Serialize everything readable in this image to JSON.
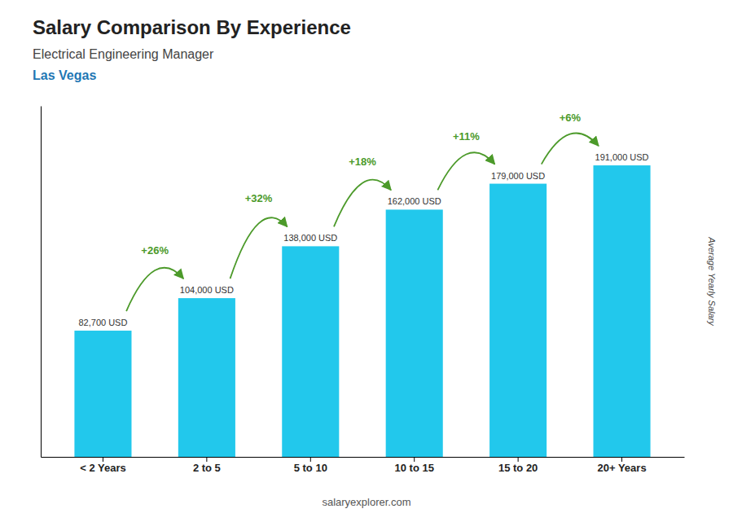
{
  "chart_data": {
    "type": "bar",
    "title": "Salary Comparison By Experience",
    "subtitle": "Electrical Engineering Manager",
    "city": "Las Vegas",
    "ylabel": "Average Yearly Salary",
    "categories": [
      "< 2 Years",
      "2 to 5",
      "5 to 10",
      "10 to 15",
      "15 to 20",
      "20+ Years"
    ],
    "values": [
      82700,
      104000,
      138000,
      162000,
      179000,
      191000
    ],
    "value_labels": [
      "82,700 USD",
      "104,000 USD",
      "138,000 USD",
      "162,000 USD",
      "179,000 USD",
      "191,000 USD"
    ],
    "data_labels": true,
    "annotations": [
      "+26%",
      "+32%",
      "+18%",
      "+11%",
      "+6%"
    ],
    "footer": "salaryexplorer.com",
    "color": "#22c8ec",
    "ylim": [
      0,
      230000
    ],
    "tick_labels": "x",
    "grid": false
  }
}
